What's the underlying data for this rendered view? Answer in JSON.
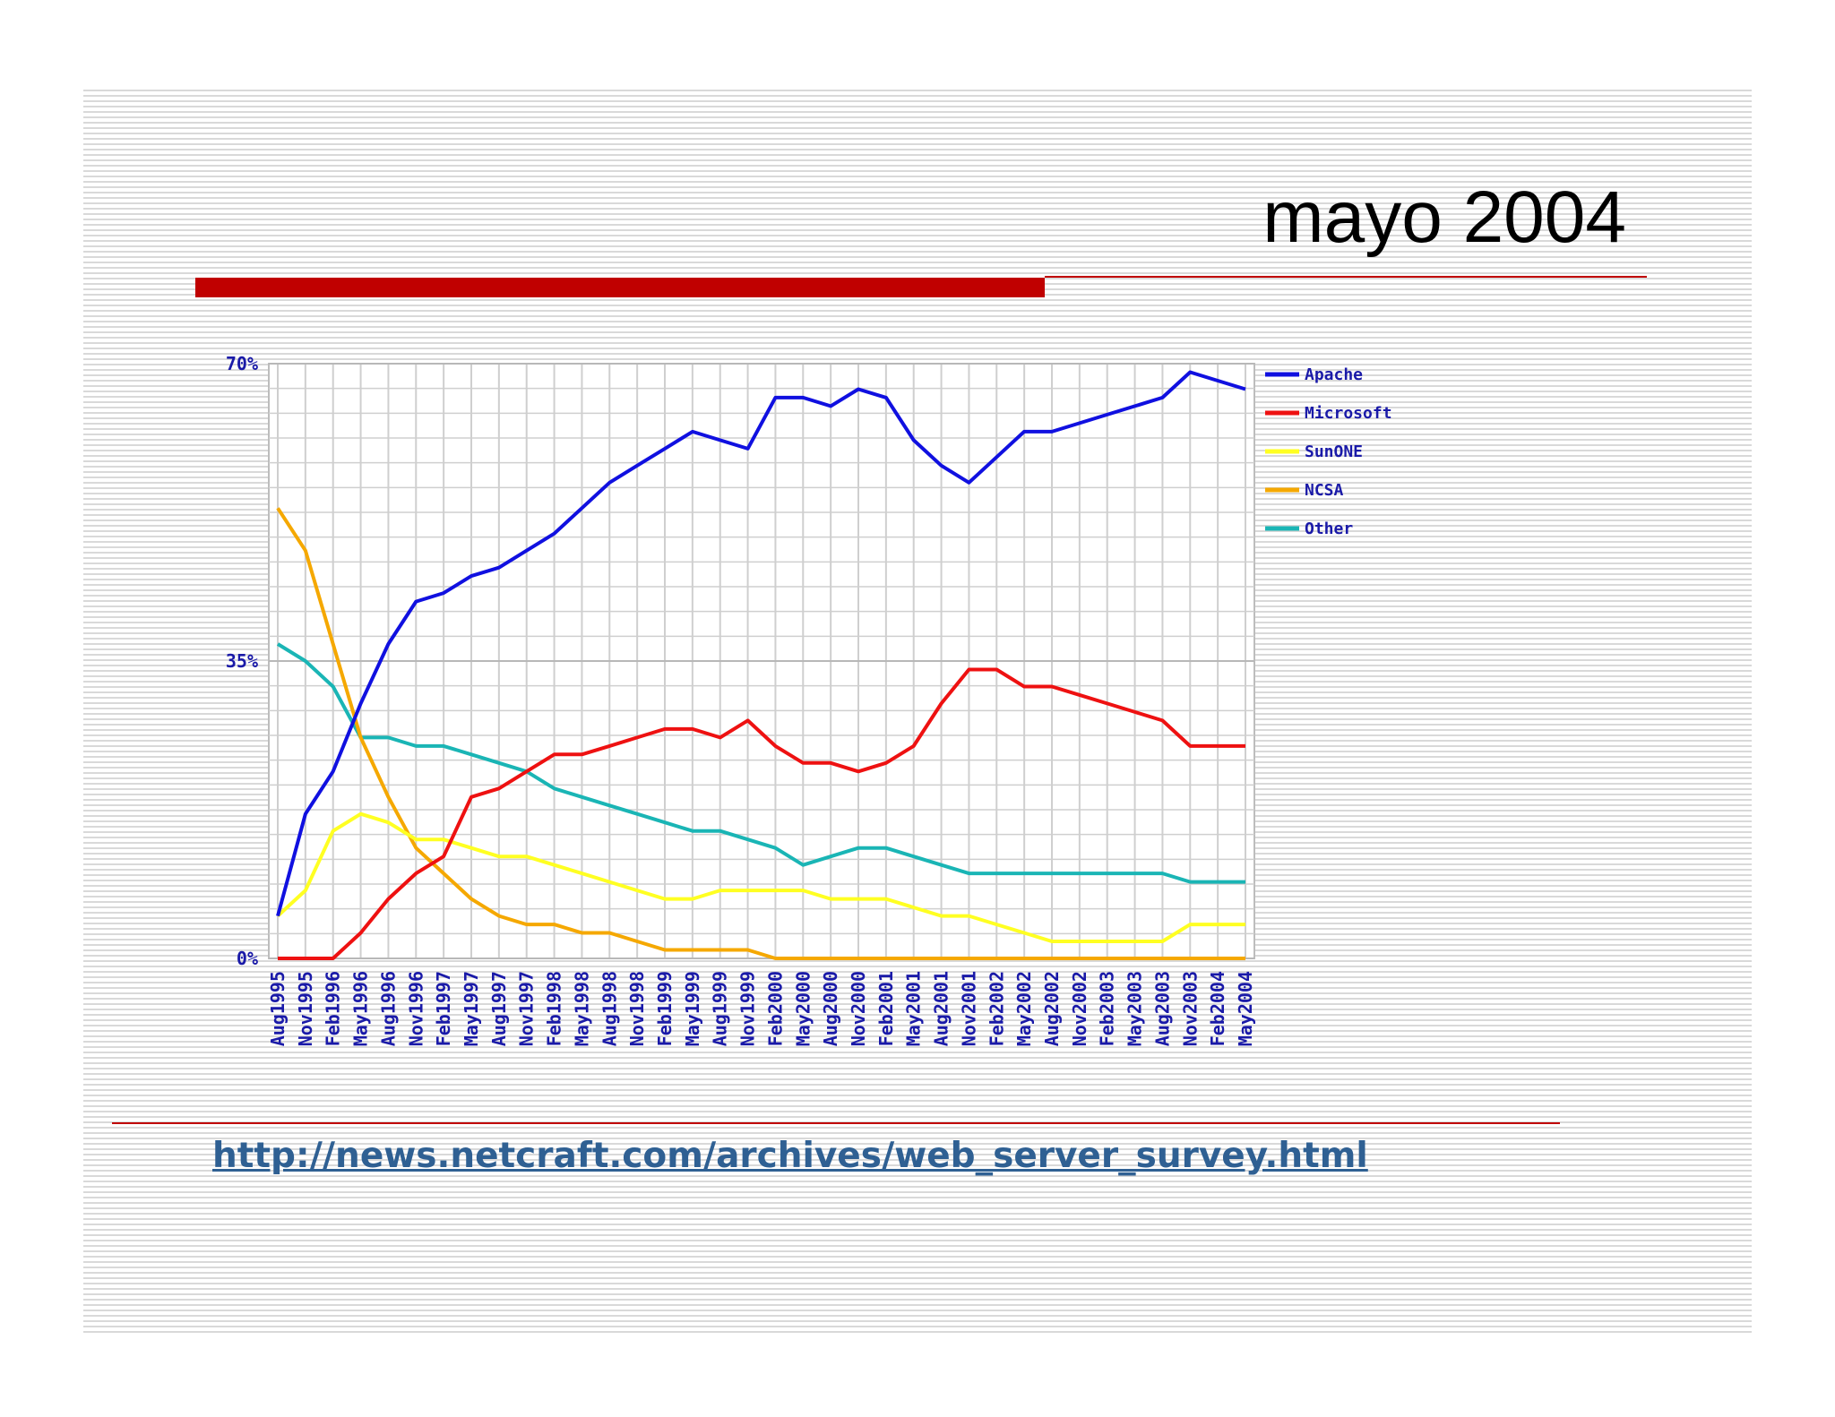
{
  "slide": {
    "title": "mayo 2004",
    "source_url": "http://news.netcraft.com/archives/web_server_survey.html"
  },
  "colors": {
    "accent_red": "#c00000",
    "link": "#2f6093",
    "axis_text": "#1a1aa8",
    "Apache": "#1010e0",
    "Microsoft": "#ee1111",
    "SunONE": "#ffff22",
    "NCSA": "#f5a800",
    "Other": "#1ab5b5"
  },
  "chart_data": {
    "type": "line",
    "title": "",
    "xlabel": "",
    "ylabel": "",
    "ylim": [
      0,
      70
    ],
    "y_ticks": [
      {
        "value": 0,
        "label": "0%"
      },
      {
        "value": 35,
        "label": "35%"
      },
      {
        "value": 70,
        "label": "70%"
      }
    ],
    "categories": [
      "Aug1995",
      "Nov1995",
      "Feb1996",
      "May1996",
      "Aug1996",
      "Nov1996",
      "Feb1997",
      "May1997",
      "Aug1997",
      "Nov1997",
      "Feb1998",
      "May1998",
      "Aug1998",
      "Nov1998",
      "Feb1999",
      "May1999",
      "Aug1999",
      "Nov1999",
      "Feb2000",
      "May2000",
      "Aug2000",
      "Nov2000",
      "Feb2001",
      "May2001",
      "Aug2001",
      "Nov2001",
      "Feb2002",
      "May2002",
      "Aug2002",
      "Nov2002",
      "Feb2003",
      "May2003",
      "Aug2003",
      "Nov2003",
      "Feb2004",
      "May2004"
    ],
    "grid": true,
    "legend_position": "right",
    "series": [
      {
        "name": "Apache",
        "values": [
          5,
          17,
          22,
          30,
          37,
          42,
          43,
          45,
          46,
          48,
          50,
          53,
          56,
          58,
          60,
          62,
          61,
          60,
          66,
          66,
          65,
          67,
          66,
          61,
          58,
          56,
          59,
          62,
          62,
          63,
          64,
          65,
          66,
          69,
          68,
          67
        ]
      },
      {
        "name": "Microsoft",
        "values": [
          0,
          0,
          0,
          3,
          7,
          10,
          12,
          19,
          20,
          22,
          24,
          24,
          25,
          26,
          27,
          27,
          26,
          28,
          25,
          23,
          23,
          22,
          23,
          25,
          30,
          34,
          34,
          32,
          32,
          31,
          30,
          29,
          28,
          25,
          25,
          25
        ]
      },
      {
        "name": "SunONE",
        "values": [
          5,
          8,
          15,
          17,
          16,
          14,
          14,
          13,
          12,
          12,
          11,
          10,
          9,
          8,
          7,
          7,
          8,
          8,
          8,
          8,
          7,
          7,
          7,
          6,
          5,
          5,
          4,
          3,
          2,
          2,
          2,
          2,
          2,
          4,
          4,
          4
        ]
      },
      {
        "name": "NCSA",
        "values": [
          53,
          48,
          37,
          26,
          19,
          13,
          10,
          7,
          5,
          4,
          4,
          3,
          3,
          2,
          1,
          1,
          1,
          1,
          0,
          0,
          0,
          0,
          0,
          0,
          0,
          0,
          0,
          0,
          0,
          0,
          0,
          0,
          0,
          0,
          0,
          0
        ]
      },
      {
        "name": "Other",
        "values": [
          37,
          35,
          32,
          26,
          26,
          25,
          25,
          24,
          23,
          22,
          20,
          19,
          18,
          17,
          16,
          15,
          15,
          14,
          13,
          11,
          12,
          13,
          13,
          12,
          11,
          10,
          10,
          10,
          10,
          10,
          10,
          10,
          10,
          9,
          9,
          9
        ]
      }
    ]
  }
}
